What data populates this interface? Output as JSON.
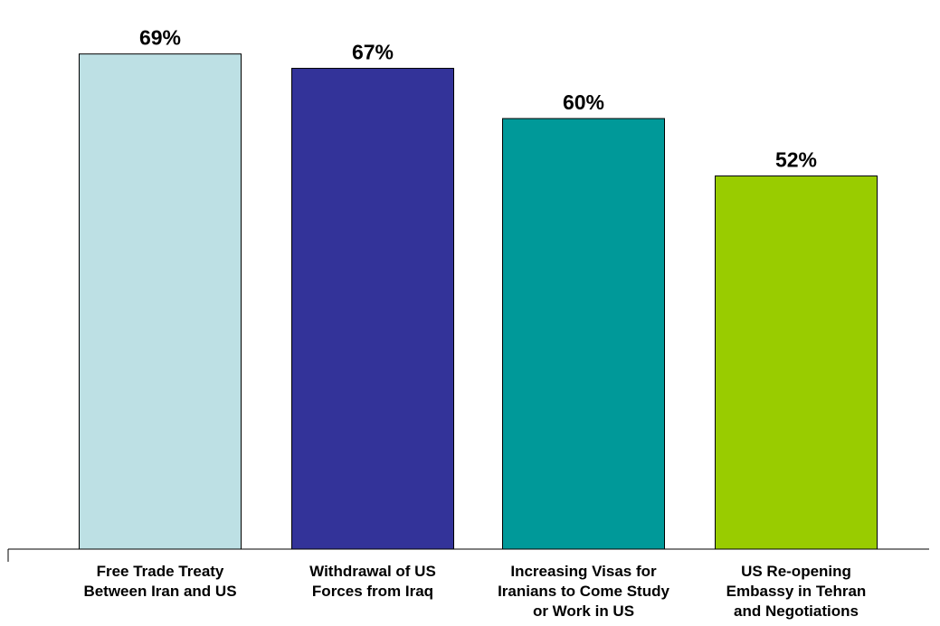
{
  "chart_data": {
    "type": "bar",
    "categories": [
      [
        "Free Trade Treaty",
        "Between Iran and US"
      ],
      [
        "Withdrawal of US",
        "Forces from Iraq"
      ],
      [
        "Increasing Visas for",
        "Iranians to Come Study",
        "or Work in US"
      ],
      [
        "US Re-opening",
        "Embassy in Tehran",
        "and Negotiations"
      ]
    ],
    "values": [
      69,
      67,
      60,
      52
    ],
    "value_labels": [
      "69%",
      "67%",
      "60%",
      "52%"
    ],
    "colors": [
      "#BDE0E4",
      "#333399",
      "#009999",
      "#99CC00"
    ],
    "ylim": [
      0,
      74
    ],
    "grid": false,
    "legend": "none"
  }
}
